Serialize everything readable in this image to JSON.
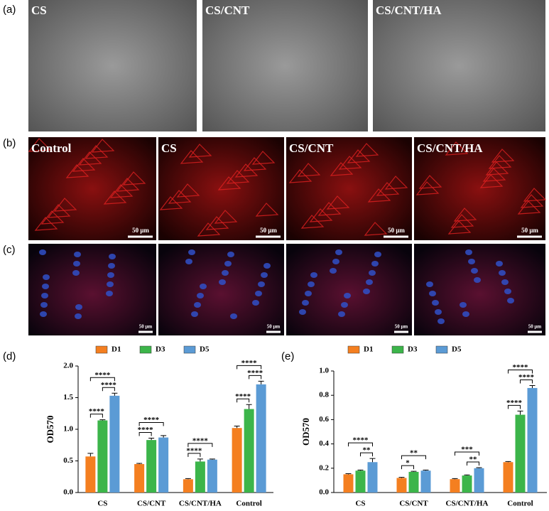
{
  "panel_labels": [
    "(a)",
    "(b)",
    "(c)",
    "(d)",
    "(e)"
  ],
  "sem_images": [
    "CS",
    "CS/CNT",
    "CS/CNT/HA"
  ],
  "fluorescence_images": [
    "Control",
    "CS",
    "CS/CNT",
    "CS/CNT/HA"
  ],
  "scale_bar": "50 μm",
  "chart_data": [
    {
      "type": "bar",
      "y_label": "OD570",
      "categories": [
        "CS",
        "CS/CNT",
        "CS/CNT/HA",
        "Control"
      ],
      "series": [
        {
          "name": "D1",
          "color": "#f47f20",
          "values": [
            0.57,
            0.45,
            0.21,
            1.02
          ],
          "errors": [
            0.05,
            0.01,
            0.01,
            0.03
          ]
        },
        {
          "name": "D3",
          "color": "#3cb54a",
          "values": [
            1.14,
            0.83,
            0.49,
            1.32
          ],
          "errors": [
            0.01,
            0.03,
            0.04,
            0.07
          ]
        },
        {
          "name": "D5",
          "color": "#5b9bd5",
          "values": [
            1.53,
            0.87,
            0.52,
            1.71
          ],
          "errors": [
            0.04,
            0.03,
            0.01,
            0.05
          ]
        }
      ],
      "ylim": [
        0,
        2.0
      ],
      "yticks": [
        {
          "value": 0,
          "label": "0.0"
        },
        0.5,
        {
          "value": 1.0,
          "label": "1.0"
        },
        1.5,
        {
          "value": 2.0,
          "label": "2.0"
        }
      ],
      "significance": [
        {
          "category": 0,
          "pair": [
            0,
            1
          ],
          "label": "****"
        },
        {
          "category": 0,
          "pair": [
            1,
            2
          ],
          "label": "****"
        },
        {
          "category": 0,
          "pair": [
            0,
            2
          ],
          "label": "****"
        },
        {
          "category": 1,
          "pair": [
            0,
            1
          ],
          "label": "****"
        },
        {
          "category": 1,
          "pair": [
            0,
            2
          ],
          "label": "****"
        },
        {
          "category": 2,
          "pair": [
            0,
            1
          ],
          "label": "****"
        },
        {
          "category": 2,
          "pair": [
            0,
            2
          ],
          "label": "****"
        },
        {
          "category": 3,
          "pair": [
            0,
            1
          ],
          "label": "****"
        },
        {
          "category": 3,
          "pair": [
            1,
            2
          ],
          "label": "****"
        },
        {
          "category": 3,
          "pair": [
            0,
            2
          ],
          "label": "****"
        }
      ]
    },
    {
      "type": "bar",
      "y_label": "OD570",
      "categories": [
        "CS",
        "CS/CNT",
        "CS/CNT/HA",
        "Control"
      ],
      "series": [
        {
          "name": "D1",
          "color": "#f47f20",
          "values": [
            0.15,
            0.12,
            0.11,
            0.25
          ],
          "errors": [
            0.005,
            0.005,
            0.005,
            0.005
          ]
        },
        {
          "name": "D3",
          "color": "#3cb54a",
          "values": [
            0.18,
            0.17,
            0.14,
            0.64
          ],
          "errors": [
            0.005,
            0.005,
            0.005,
            0.03
          ]
        },
        {
          "name": "D5",
          "color": "#5b9bd5",
          "values": [
            0.25,
            0.18,
            0.2,
            0.86
          ],
          "errors": [
            0.03,
            0.005,
            0.005,
            0.02
          ]
        }
      ],
      "ylim": [
        0,
        1.0
      ],
      "yticks": [
        {
          "value": 0,
          "label": "0.0"
        },
        0.2,
        0.4,
        0.6,
        0.8,
        {
          "value": 1.0,
          "label": "1.0"
        }
      ],
      "significance": [
        {
          "category": 0,
          "pair": [
            1,
            2
          ],
          "label": "**"
        },
        {
          "category": 0,
          "pair": [
            0,
            2
          ],
          "label": "****"
        },
        {
          "category": 1,
          "pair": [
            0,
            1
          ],
          "label": "*"
        },
        {
          "category": 1,
          "pair": [
            0,
            2
          ],
          "label": "**"
        },
        {
          "category": 2,
          "pair": [
            1,
            2
          ],
          "label": "**"
        },
        {
          "category": 2,
          "pair": [
            0,
            2
          ],
          "label": "***"
        },
        {
          "category": 3,
          "pair": [
            0,
            1
          ],
          "label": "****"
        },
        {
          "category": 3,
          "pair": [
            1,
            2
          ],
          "label": "****"
        },
        {
          "category": 3,
          "pair": [
            0,
            2
          ],
          "label": "****"
        }
      ]
    }
  ]
}
